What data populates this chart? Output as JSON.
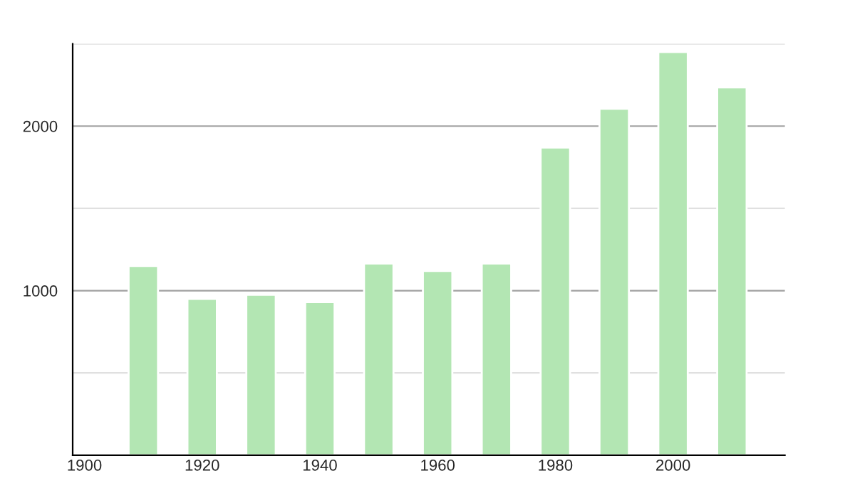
{
  "chart_data": {
    "type": "bar",
    "x": [
      1910,
      1920,
      1930,
      1940,
      1950,
      1960,
      1970,
      1980,
      1990,
      2000,
      2010
    ],
    "values": [
      1150,
      950,
      975,
      930,
      1165,
      1120,
      1165,
      1870,
      2105,
      2450,
      2235
    ],
    "color": "#b3e6b3",
    "xlim": [
      1898,
      2019
    ],
    "xticks": [
      1900,
      1920,
      1940,
      1960,
      1980,
      2000
    ],
    "ylim": [
      0,
      2500
    ],
    "yticks": [
      {
        "value": 500,
        "label": null
      },
      1000,
      {
        "value": 1500,
        "label": null
      },
      2000,
      {
        "value": 2500,
        "label": null
      }
    ],
    "grid": "y",
    "legend": false
  }
}
